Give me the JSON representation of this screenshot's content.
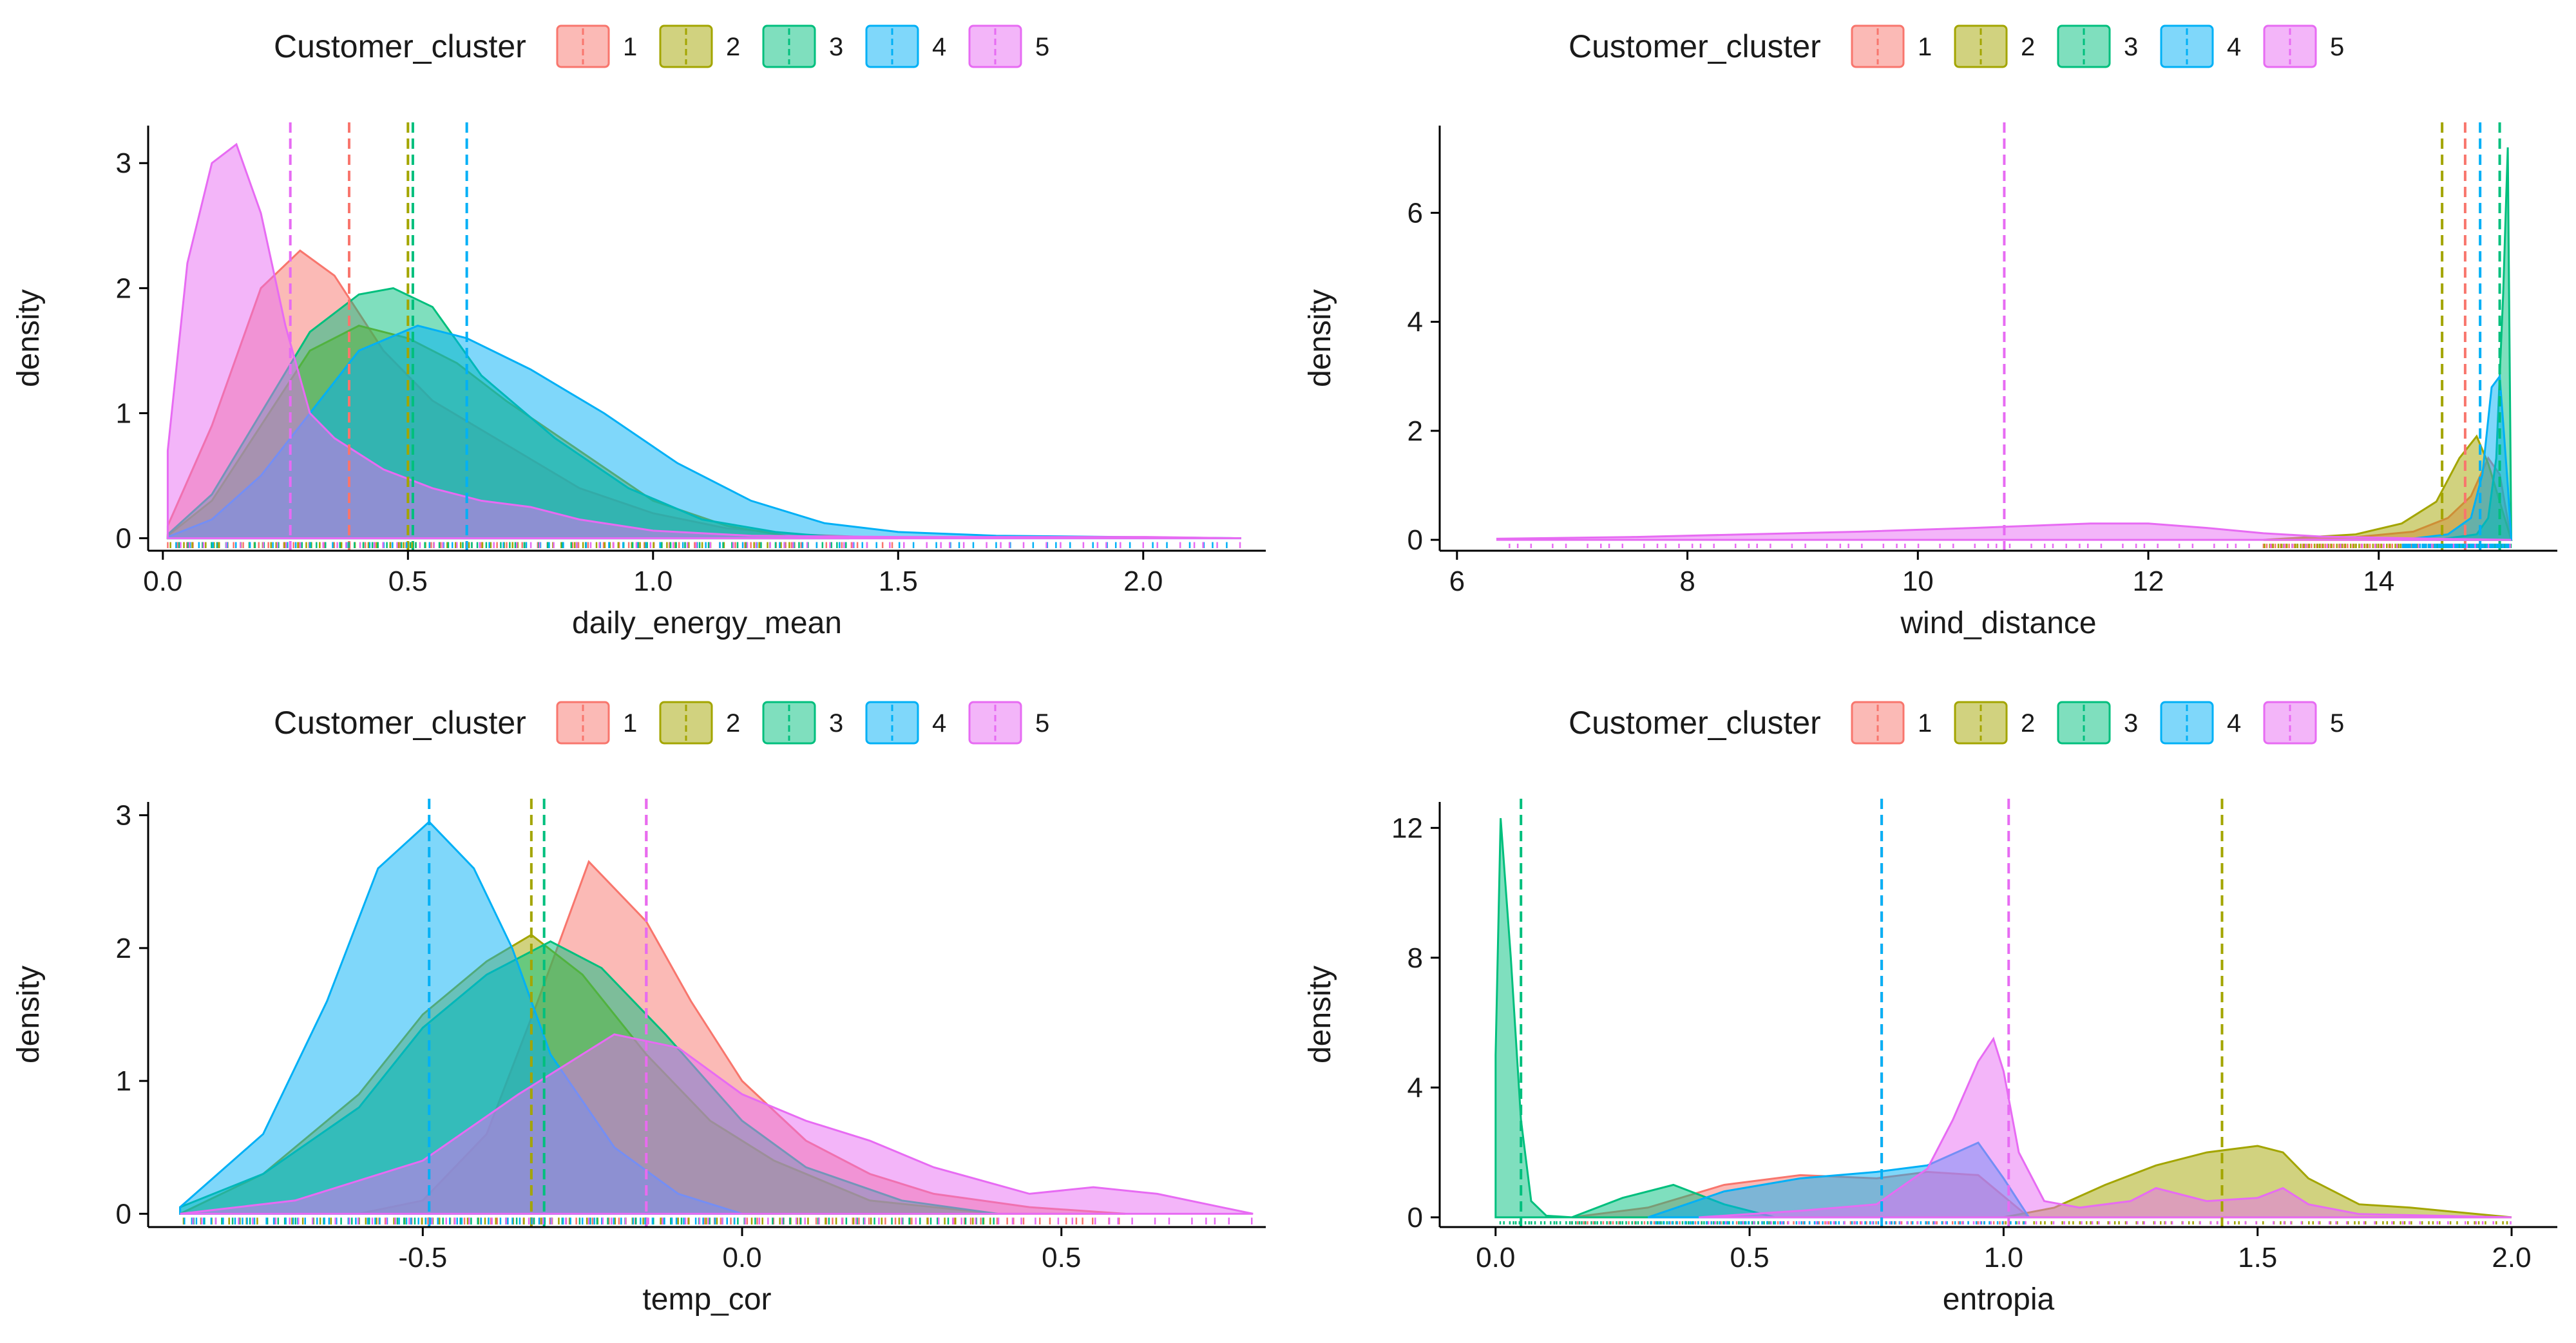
{
  "legend": {
    "title": "Customer_cluster",
    "entries": [
      "1",
      "2",
      "3",
      "4",
      "5"
    ],
    "colors": [
      "#F8766D",
      "#A3A500",
      "#00BF7D",
      "#00B0F6",
      "#E76BF3"
    ]
  },
  "chart_data": [
    {
      "type": "area",
      "title": "",
      "xlabel": "daily_energy_mean",
      "ylabel": "density",
      "xlim": [
        -0.03,
        2.25
      ],
      "ylim": [
        -0.1,
        3.3
      ],
      "xticks": [
        0.0,
        0.5,
        1.0,
        1.5,
        2.0
      ],
      "xtick_labels": [
        "0.0",
        "0.5",
        "1.0",
        "1.5",
        "2.0"
      ],
      "yticks": [
        0,
        1,
        2,
        3
      ],
      "ytick_labels": [
        "0",
        "1",
        "2",
        "3"
      ],
      "legend_position": "top",
      "series": [
        {
          "name": "1",
          "mean": 0.38,
          "x": [
            0.01,
            0.1,
            0.2,
            0.28,
            0.35,
            0.45,
            0.55,
            0.7,
            0.85,
            1.0,
            1.15,
            1.3,
            1.5
          ],
          "y": [
            0.1,
            0.9,
            2.0,
            2.3,
            2.1,
            1.5,
            1.1,
            0.75,
            0.4,
            0.2,
            0.08,
            0.03,
            0.0
          ]
        },
        {
          "name": "2",
          "mean": 0.5,
          "x": [
            0.01,
            0.1,
            0.2,
            0.3,
            0.4,
            0.5,
            0.6,
            0.7,
            0.85,
            1.0,
            1.15,
            1.3
          ],
          "y": [
            0.02,
            0.3,
            0.9,
            1.5,
            1.7,
            1.6,
            1.4,
            1.1,
            0.7,
            0.3,
            0.1,
            0.0
          ]
        },
        {
          "name": "3",
          "mean": 0.51,
          "x": [
            0.01,
            0.1,
            0.2,
            0.3,
            0.4,
            0.47,
            0.55,
            0.65,
            0.8,
            0.95,
            1.1,
            1.25,
            1.4
          ],
          "y": [
            0.03,
            0.35,
            1.0,
            1.65,
            1.95,
            2.0,
            1.85,
            1.3,
            0.8,
            0.4,
            0.15,
            0.05,
            0.0
          ]
        },
        {
          "name": "4",
          "mean": 0.62,
          "x": [
            0.01,
            0.1,
            0.2,
            0.3,
            0.4,
            0.52,
            0.62,
            0.75,
            0.9,
            1.05,
            1.2,
            1.35,
            1.5,
            1.7,
            2.2
          ],
          "y": [
            0.01,
            0.15,
            0.5,
            1.0,
            1.5,
            1.7,
            1.6,
            1.35,
            1.0,
            0.6,
            0.3,
            0.12,
            0.05,
            0.02,
            0.0
          ]
        },
        {
          "name": "5",
          "mean": 0.26,
          "x": [
            0.01,
            0.05,
            0.1,
            0.15,
            0.2,
            0.25,
            0.3,
            0.35,
            0.45,
            0.55,
            0.65,
            0.75,
            0.85,
            1.0,
            1.2,
            1.5,
            2.0,
            2.2
          ],
          "y": [
            0.7,
            2.2,
            3.0,
            3.15,
            2.6,
            1.7,
            1.0,
            0.8,
            0.55,
            0.4,
            0.3,
            0.25,
            0.15,
            0.06,
            0.02,
            0.01,
            0.01,
            0.0
          ]
        }
      ]
    },
    {
      "type": "area",
      "title": "",
      "xlabel": "wind_distance",
      "ylabel": "density",
      "xlim": [
        5.85,
        15.55
      ],
      "ylim": [
        -0.2,
        7.6
      ],
      "xticks": [
        6,
        8,
        10,
        12,
        14
      ],
      "xtick_labels": [
        "6",
        "8",
        "10",
        "12",
        "14"
      ],
      "yticks": [
        0,
        2,
        4,
        6
      ],
      "ytick_labels": [
        "0",
        "2",
        "4",
        "6"
      ],
      "legend_position": "top",
      "series": [
        {
          "name": "1",
          "mean": 14.75,
          "x": [
            13.0,
            13.8,
            14.3,
            14.6,
            14.8,
            14.95,
            15.05,
            15.15
          ],
          "y": [
            0.0,
            0.05,
            0.15,
            0.4,
            0.8,
            1.5,
            1.2,
            0.0
          ]
        },
        {
          "name": "2",
          "mean": 14.55,
          "x": [
            13.0,
            13.8,
            14.2,
            14.5,
            14.7,
            14.85,
            14.95,
            15.05,
            15.15
          ],
          "y": [
            0.0,
            0.1,
            0.3,
            0.7,
            1.5,
            1.9,
            1.4,
            0.7,
            0.0
          ]
        },
        {
          "name": "3",
          "mean": 15.05,
          "x": [
            14.5,
            14.85,
            14.95,
            15.02,
            15.08,
            15.12,
            15.15
          ],
          "y": [
            0.0,
            0.1,
            0.4,
            1.5,
            4.5,
            7.2,
            0.0
          ]
        },
        {
          "name": "4",
          "mean": 14.88,
          "x": [
            14.2,
            14.6,
            14.8,
            14.9,
            14.98,
            15.05,
            15.12,
            15.15
          ],
          "y": [
            0.0,
            0.1,
            0.4,
            1.2,
            2.8,
            3.0,
            1.0,
            0.0
          ]
        },
        {
          "name": "5",
          "mean": 10.75,
          "x": [
            6.35,
            7.5,
            8.5,
            9.5,
            10.5,
            11.5,
            12.0,
            12.5,
            13.0,
            13.5,
            14.0,
            14.5,
            15.15
          ],
          "y": [
            0.02,
            0.05,
            0.1,
            0.15,
            0.22,
            0.3,
            0.3,
            0.22,
            0.12,
            0.06,
            0.04,
            0.02,
            0.0
          ]
        }
      ]
    },
    {
      "type": "area",
      "title": "",
      "xlabel": "temp_cor",
      "ylabel": "density",
      "xlim": [
        -0.93,
        0.82
      ],
      "ylim": [
        -0.1,
        3.1
      ],
      "xticks": [
        -0.5,
        0.0,
        0.5
      ],
      "xtick_labels": [
        "-0.5",
        "0.0",
        "0.5"
      ],
      "yticks": [
        0,
        1,
        2,
        3
      ],
      "ytick_labels": [
        "0",
        "1",
        "2",
        "3"
      ],
      "legend_position": "top",
      "series": [
        {
          "name": "1",
          "mean": -0.15,
          "x": [
            -0.6,
            -0.5,
            -0.4,
            -0.32,
            -0.24,
            -0.15,
            -0.08,
            0.0,
            0.1,
            0.2,
            0.3,
            0.45,
            0.6
          ],
          "y": [
            0.0,
            0.1,
            0.6,
            1.6,
            2.65,
            2.2,
            1.6,
            1.0,
            0.55,
            0.3,
            0.15,
            0.05,
            0.0
          ]
        },
        {
          "name": "2",
          "mean": -0.33,
          "x": [
            -0.88,
            -0.75,
            -0.6,
            -0.5,
            -0.4,
            -0.33,
            -0.25,
            -0.15,
            -0.05,
            0.05,
            0.2,
            0.4
          ],
          "y": [
            0.0,
            0.3,
            0.9,
            1.5,
            1.9,
            2.1,
            1.8,
            1.2,
            0.7,
            0.4,
            0.1,
            0.0
          ]
        },
        {
          "name": "3",
          "mean": -0.31,
          "x": [
            -0.88,
            -0.75,
            -0.6,
            -0.5,
            -0.4,
            -0.3,
            -0.22,
            -0.12,
            0.0,
            0.1,
            0.25,
            0.4
          ],
          "y": [
            0.05,
            0.3,
            0.8,
            1.4,
            1.8,
            2.05,
            1.85,
            1.35,
            0.7,
            0.35,
            0.1,
            0.0
          ]
        },
        {
          "name": "4",
          "mean": -0.49,
          "x": [
            -0.88,
            -0.75,
            -0.65,
            -0.57,
            -0.49,
            -0.42,
            -0.36,
            -0.3,
            -0.2,
            -0.1,
            0.0
          ],
          "y": [
            0.05,
            0.6,
            1.6,
            2.6,
            2.95,
            2.6,
            2.0,
            1.2,
            0.5,
            0.15,
            0.0
          ]
        },
        {
          "name": "5",
          "mean": -0.15,
          "x": [
            -0.88,
            -0.7,
            -0.5,
            -0.35,
            -0.2,
            -0.1,
            0.0,
            0.1,
            0.2,
            0.3,
            0.45,
            0.55,
            0.65,
            0.8
          ],
          "y": [
            0.0,
            0.1,
            0.4,
            0.9,
            1.35,
            1.25,
            0.9,
            0.7,
            0.55,
            0.35,
            0.15,
            0.2,
            0.15,
            0.0
          ]
        }
      ]
    },
    {
      "type": "area",
      "title": "",
      "xlabel": "entropia",
      "ylabel": "density",
      "xlim": [
        -0.11,
        2.09
      ],
      "ylim": [
        -0.3,
        12.8
      ],
      "xticks": [
        0.0,
        0.5,
        1.0,
        1.5,
        2.0
      ],
      "xtick_labels": [
        "0.0",
        "0.5",
        "1.0",
        "1.5",
        "2.0"
      ],
      "yticks": [
        0,
        4,
        8,
        12
      ],
      "ytick_labels": [
        "0",
        "4",
        "8",
        "12"
      ],
      "legend_position": "top",
      "series": [
        {
          "name": "1",
          "mean": 0.76,
          "x": [
            0.15,
            0.3,
            0.45,
            0.6,
            0.75,
            0.85,
            0.95,
            1.05
          ],
          "y": [
            0.0,
            0.3,
            1.0,
            1.3,
            1.2,
            1.4,
            1.3,
            0.0
          ]
        },
        {
          "name": "2",
          "mean": 1.43,
          "x": [
            1.0,
            1.1,
            1.2,
            1.3,
            1.4,
            1.5,
            1.55,
            1.6,
            1.7,
            1.8,
            2.0
          ],
          "y": [
            0.0,
            0.3,
            1.0,
            1.6,
            2.0,
            2.2,
            2.0,
            1.2,
            0.4,
            0.3,
            0.0
          ]
        },
        {
          "name": "3",
          "mean": 0.05,
          "x": [
            0.0,
            0.01,
            0.03,
            0.05,
            0.07,
            0.1,
            0.15,
            0.25,
            0.35,
            0.45,
            0.55
          ],
          "y": [
            5.0,
            12.3,
            8.0,
            3.0,
            0.5,
            0.05,
            0.0,
            0.6,
            1.0,
            0.4,
            0.0
          ]
        },
        {
          "name": "4",
          "mean": 0.76,
          "x": [
            0.3,
            0.45,
            0.6,
            0.75,
            0.85,
            0.95,
            1.0,
            1.05
          ],
          "y": [
            0.0,
            0.8,
            1.2,
            1.4,
            1.6,
            2.3,
            1.2,
            0.0
          ]
        },
        {
          "name": "5",
          "mean": 1.01,
          "x": [
            0.4,
            0.6,
            0.75,
            0.85,
            0.9,
            0.95,
            0.98,
            1.0,
            1.03,
            1.08,
            1.15,
            1.25,
            1.3,
            1.4,
            1.5,
            1.55,
            1.6,
            1.7,
            2.0
          ],
          "y": [
            0.0,
            0.2,
            0.4,
            1.5,
            3.0,
            4.8,
            5.5,
            4.5,
            2.0,
            0.5,
            0.3,
            0.5,
            0.9,
            0.5,
            0.6,
            0.9,
            0.4,
            0.1,
            0.0
          ]
        }
      ]
    }
  ]
}
